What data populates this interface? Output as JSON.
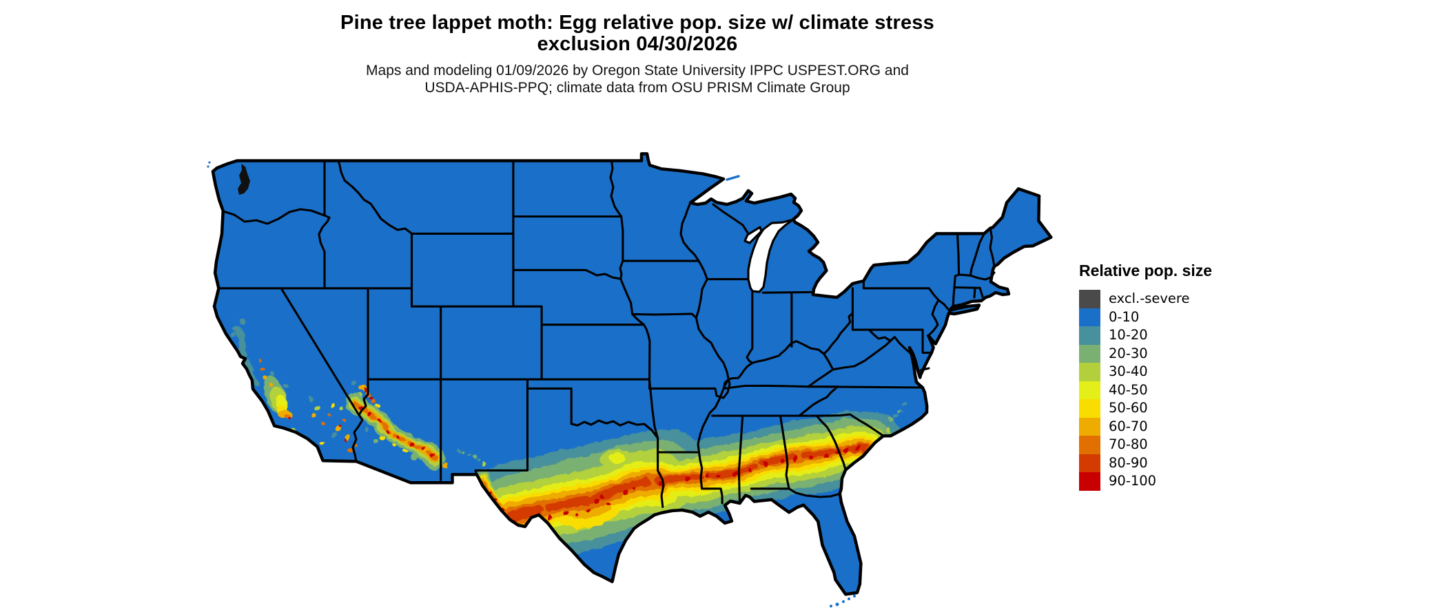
{
  "title": {
    "line1": "Pine tree lappet moth: Egg relative pop. size w/ climate stress",
    "line2": "exclusion 04/30/2026"
  },
  "subtitle": {
    "line1": "Maps and modeling 01/09/2026 by Oregon State University IPPC USPEST.ORG and",
    "line2": "USDA-APHIS-PPQ; climate data from OSU PRISM Climate Group"
  },
  "legend": {
    "title": "Relative pop. size",
    "items": [
      {
        "label": "excl.-severe",
        "color": "#4a4a4a"
      },
      {
        "label": "0-10",
        "color": "#1a70c8"
      },
      {
        "label": "10-20",
        "color": "#47909c"
      },
      {
        "label": "20-30",
        "color": "#7ab072"
      },
      {
        "label": "30-40",
        "color": "#b3d03c"
      },
      {
        "label": "40-50",
        "color": "#e4ee18"
      },
      {
        "label": "50-60",
        "color": "#f9dc00"
      },
      {
        "label": "60-70",
        "color": "#eeab00"
      },
      {
        "label": "70-80",
        "color": "#e17000"
      },
      {
        "label": "80-90",
        "color": "#d43b00"
      },
      {
        "label": "90-100",
        "color": "#c80000"
      }
    ]
  },
  "map": {
    "region": "Contiguous United States",
    "base_fill_class": "0-10",
    "border_color": "#000000",
    "background_color": "#ffffff",
    "high_population_band": "Southern band from west Texas through Louisiana, Mississippi, Alabama and Georgia to coastal South Carolina; scattered hotspots in California's Central Valley and foothills, southern California coast, and the Arizona Mogollon Rim region."
  }
}
